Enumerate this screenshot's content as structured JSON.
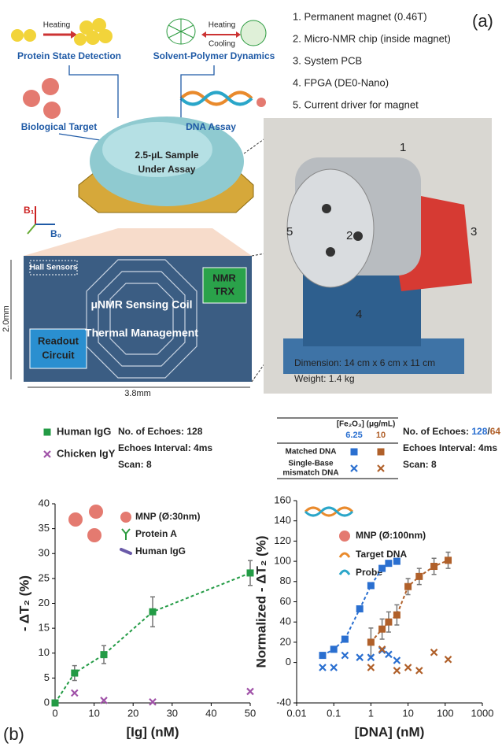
{
  "figure": {
    "panel_a": "(a)",
    "panel_b": "(b)",
    "list": [
      "1. Permanent magnet (0.46T)",
      "2. Micro-NMR chip (inside magnet)",
      "3. System PCB",
      "4. FPGA (DE0-Nano)",
      "5. Current driver for magnet"
    ],
    "heating1": "Heating",
    "protein": "Protein State Detection",
    "heating2": "Heating",
    "cooling": "Cooling",
    "solvent": "Solvent-Polymer Dynamics",
    "bio": "Biological Target",
    "dna": "DNA Assay",
    "sample": [
      "2.5-μL Sample",
      "Under Assay"
    ],
    "b1": "B₁",
    "b0": "B₀",
    "hall": "Hall Sensors",
    "readout": [
      "Readout",
      "Circuit"
    ],
    "coil": "μNMR Sensing Coil",
    "thermal": "Thermal Management",
    "trx": [
      "NMR",
      "TRX"
    ],
    "height": "2.0mm",
    "width": "3.8mm",
    "photo_labels": [
      "1",
      "2",
      "3",
      "4",
      "5"
    ],
    "dimension": "Dimension: 14 cm x 6 cm x 11 cm",
    "weight": "Weight: 1.4 kg"
  },
  "chart_data": [
    {
      "type": "scatter",
      "xlabel": "[Ig] (nM)",
      "ylabel": "- ΔT₂ (%)",
      "xlim": [
        0,
        50
      ],
      "xticks": [
        0,
        10,
        20,
        30,
        40,
        50
      ],
      "ylim": [
        0,
        40
      ],
      "yticks": [
        0,
        5,
        10,
        15,
        20,
        25,
        30,
        35,
        40
      ],
      "log": false,
      "fit": true,
      "info": [
        "No. of Echoes: 128",
        "Echoes Interval: 4ms",
        "Scan: 8"
      ],
      "notes": [
        "MNP (Ø:30nm)",
        "Protein A",
        "Human IgG"
      ],
      "series": [
        {
          "name": "Human IgG",
          "color": "#239b45",
          "marker": "square",
          "fit": true,
          "x": [
            0,
            5,
            12.5,
            25,
            50
          ],
          "values": [
            0,
            6,
            9.7,
            18.3,
            26.1
          ],
          "errors": [
            0,
            1.5,
            1.8,
            3,
            2.5
          ]
        },
        {
          "name": "Chicken IgY",
          "color": "#a052a8",
          "marker": "cross",
          "fit": false,
          "x": [
            5,
            12.5,
            25,
            50
          ],
          "values": [
            2,
            0.5,
            0.2,
            2.3
          ]
        }
      ]
    },
    {
      "type": "scatter",
      "xlabel": "[DNA] (nM)",
      "ylabel": "Normalized - ΔT₂ (%)",
      "xlim": [
        0.01,
        1000
      ],
      "xticks": [
        0.01,
        0.1,
        1,
        10,
        100,
        1000
      ],
      "ylim": [
        -40,
        160
      ],
      "yticks": [
        -40,
        0,
        20,
        40,
        60,
        80,
        100,
        120,
        140,
        160
      ],
      "log": true,
      "fit": true,
      "info_parts": [
        "No. of Echoes: ",
        "128",
        "/",
        "64"
      ],
      "info": [
        "Echoes Interval: 4ms",
        "Scan: 8"
      ],
      "notes": [
        "MNP (Ø:100nm)",
        "Target DNA",
        "Probe"
      ],
      "legend_table": {
        "header": "[Fe₂O₃] (μg/mL)",
        "columns": [
          "6.25",
          "10"
        ],
        "rows": [
          "Matched DNA",
          [
            "Single-Base",
            "mismatch DNA"
          ]
        ]
      },
      "series": [
        {
          "color": "#2a6fd0",
          "marker": "square",
          "fit": true,
          "x": [
            0.05,
            0.1,
            0.2,
            0.5,
            1,
            2,
            3,
            5
          ],
          "values": [
            7,
            13,
            23,
            53,
            76,
            93,
            98,
            100
          ]
        },
        {
          "color": "#b0602a",
          "marker": "square",
          "fit": true,
          "x": [
            1,
            2,
            3,
            5,
            10,
            20,
            50,
            120
          ],
          "values": [
            20,
            33,
            40,
            47,
            75,
            85,
            95,
            101
          ],
          "errors": [
            14,
            10,
            10,
            10,
            8,
            8,
            8,
            8
          ]
        },
        {
          "color": "#2a6fd0",
          "marker": "cross",
          "fit": false,
          "x": [
            0.05,
            0.1,
            0.2,
            0.5,
            1,
            2,
            3,
            5
          ],
          "values": [
            -5,
            -5,
            7,
            5,
            5,
            12,
            8,
            2
          ]
        },
        {
          "color": "#b0602a",
          "marker": "cross",
          "fit": false,
          "x": [
            1,
            2,
            5,
            10,
            20,
            50,
            120
          ],
          "values": [
            -5,
            13,
            -8,
            -5,
            -8,
            10,
            3
          ]
        }
      ]
    }
  ]
}
